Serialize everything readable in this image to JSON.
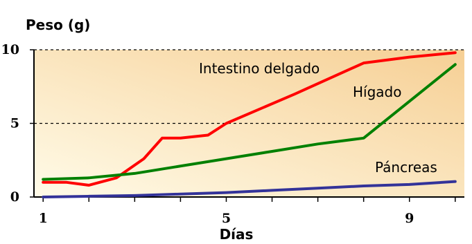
{
  "chart_data": {
    "type": "line",
    "ylabel": "Peso (g)",
    "xlabel": "Días",
    "x": [
      1,
      2,
      3,
      4,
      5,
      6,
      7,
      8,
      9,
      10
    ],
    "xticks": [
      1,
      5,
      9
    ],
    "yticks": [
      0,
      5,
      10
    ],
    "xlim": [
      0.8,
      10.2
    ],
    "ylim": [
      0,
      10
    ],
    "grid": "dashed at 5 and 10",
    "series": [
      {
        "name": "Intestino delgado",
        "color": "#ff0000",
        "x": [
          1,
          1.5,
          2,
          2.6,
          3.2,
          3.6,
          4,
          4.6,
          5,
          6.5,
          8,
          9,
          10
        ],
        "values": [
          1.0,
          1.0,
          0.8,
          1.3,
          2.6,
          4.0,
          4.0,
          4.2,
          5.0,
          7.0,
          9.1,
          9.5,
          9.8
        ]
      },
      {
        "name": "Hígado",
        "color": "#008000",
        "x": [
          1,
          2,
          3,
          4,
          5,
          6,
          7,
          8,
          9,
          10
        ],
        "values": [
          1.2,
          1.3,
          1.6,
          2.1,
          2.6,
          3.1,
          3.6,
          4.0,
          6.5,
          9.0
        ]
      },
      {
        "name": "Páncreas",
        "color": "#333399",
        "x": [
          1,
          2,
          3,
          4,
          5,
          6,
          7,
          8,
          9,
          10
        ],
        "values": [
          0.0,
          0.05,
          0.1,
          0.2,
          0.3,
          0.45,
          0.6,
          0.75,
          0.85,
          1.05
        ]
      }
    ],
    "colors": {
      "background_top": "#f6cf94",
      "background_bottom": "#fffbe8"
    }
  }
}
